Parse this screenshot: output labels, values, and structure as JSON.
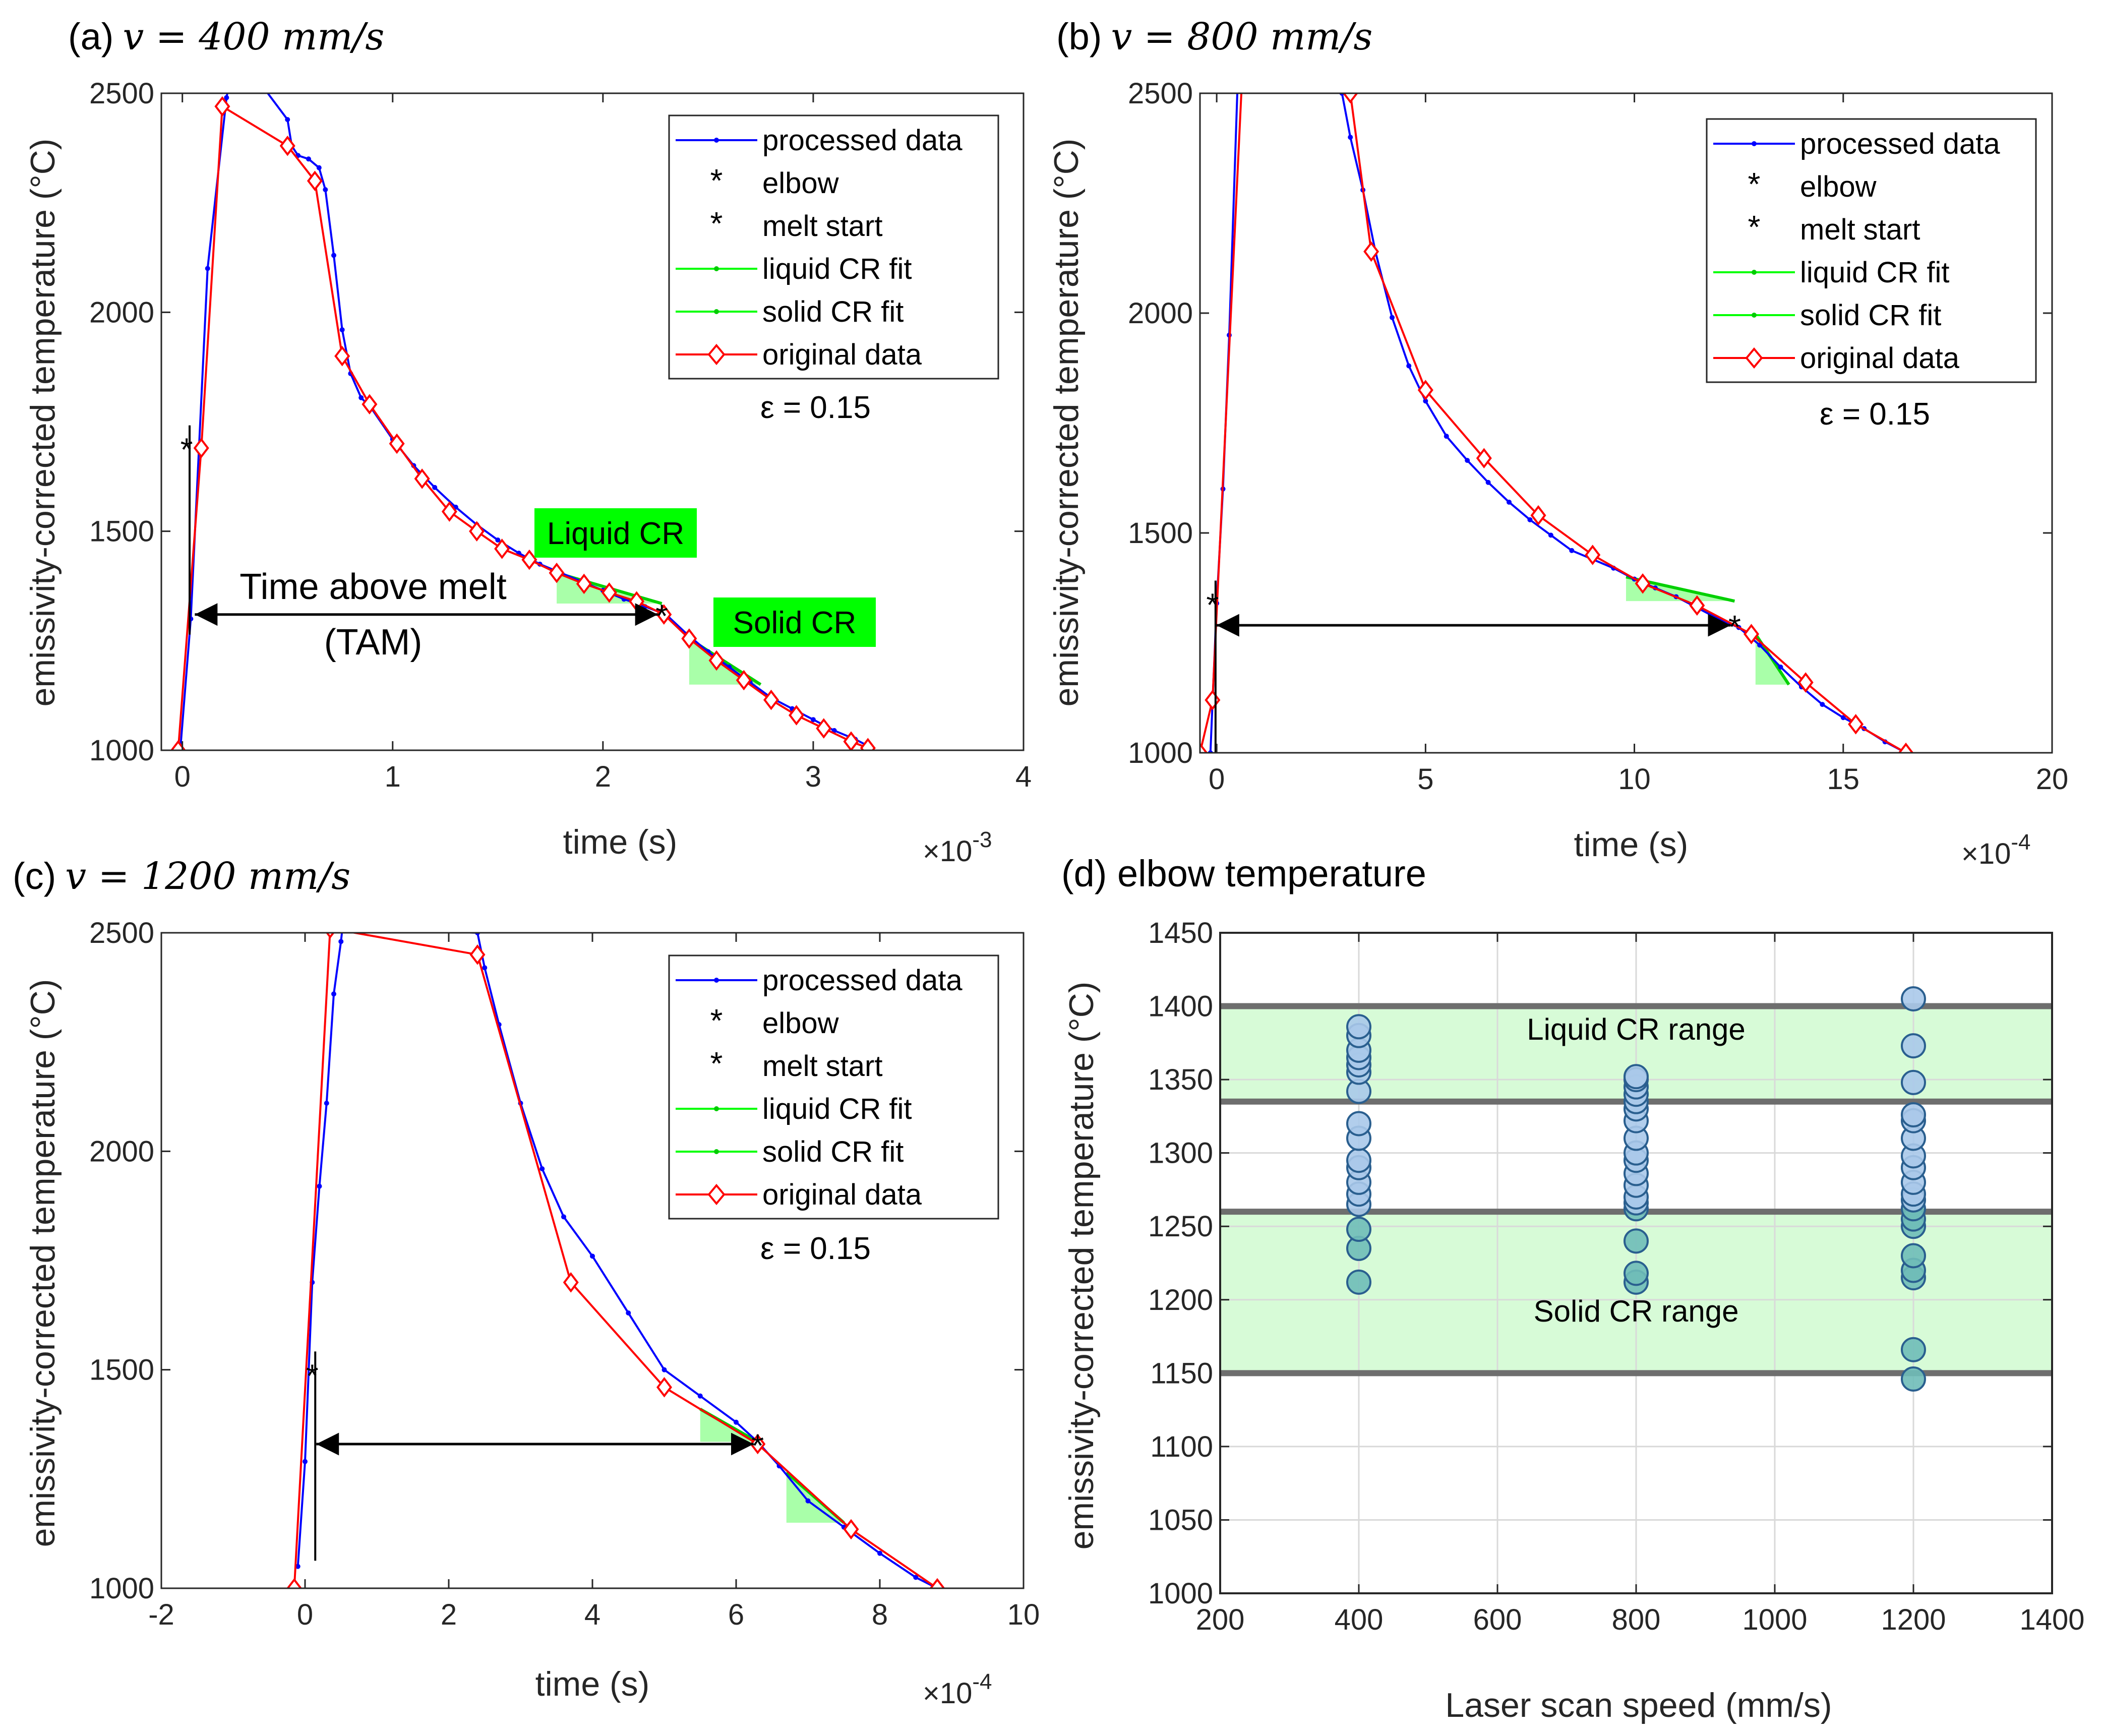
{
  "chart_data": [
    {
      "panel": "a",
      "type": "line",
      "title": {
        "label": "(a)",
        "math": "v = 400 mm/s"
      },
      "xlabel": "time (s)",
      "ylabel": "emissivity-corrected temperature (°C)",
      "x_exponent_label": "×10",
      "x_exponent": "-3",
      "xlim": [
        -0.0001,
        0.004
      ],
      "ylim": [
        1000,
        2500
      ],
      "xticks": [
        0,
        0.001,
        0.002,
        0.003,
        0.004
      ],
      "xtick_labels": [
        "0",
        "1",
        "2",
        "3",
        "4"
      ],
      "yticks": [
        1000,
        1500,
        2000,
        2500
      ],
      "ytick_labels": [
        "1000",
        "1500",
        "2000",
        "2500"
      ],
      "legend": [
        "processed data",
        "elbow",
        "melt start",
        "liquid CR fit",
        "solid CR fit",
        "original data"
      ],
      "legend_position": "top-right",
      "emissivity_label": "ε = 0.15",
      "series": [
        {
          "name": "processed data",
          "color": "#0000ff",
          "x": [
            -1e-05,
            4e-05,
            0.00012,
            0.00021,
            0.00025,
            0.0005,
            0.00052,
            0.00055,
            0.0006,
            0.00065,
            0.00068,
            0.00072,
            0.00076,
            0.0008,
            0.00085,
            0.0009,
            0.001,
            0.0011,
            0.0012,
            0.0013,
            0.0014,
            0.0015,
            0.0016,
            0.0017,
            0.0018,
            0.0019,
            0.002,
            0.0021,
            0.0022,
            0.0023,
            0.0024,
            0.0025,
            0.0026,
            0.0027,
            0.0028,
            0.0029,
            0.003,
            0.0031,
            0.0032,
            0.00326
          ],
          "y": [
            1000,
            1300,
            2100,
            2490,
            2600,
            2440,
            2380,
            2358,
            2350,
            2330,
            2280,
            2130,
            1960,
            1860,
            1805,
            1780,
            1710,
            1650,
            1600,
            1555,
            1515,
            1480,
            1450,
            1425,
            1405,
            1385,
            1365,
            1345,
            1328,
            1310,
            1265,
            1225,
            1190,
            1155,
            1120,
            1095,
            1070,
            1045,
            1025,
            1010
          ]
        },
        {
          "name": "original data",
          "color": "#ff0000",
          "x": [
            -2e-05,
            9e-05,
            0.00019,
            0.0005,
            0.00063,
            0.00076,
            0.00089,
            0.00102,
            0.00114,
            0.00127,
            0.0014,
            0.00152,
            0.00165,
            0.00178,
            0.00191,
            0.00203,
            0.00216,
            0.00229,
            0.00241,
            0.00254,
            0.00267,
            0.0028,
            0.00292,
            0.00305,
            0.00318,
            0.00326
          ],
          "y": [
            1000,
            1690,
            2470,
            2380,
            2300,
            1900,
            1790,
            1700,
            1620,
            1545,
            1500,
            1460,
            1435,
            1405,
            1380,
            1360,
            1340,
            1310,
            1255,
            1205,
            1160,
            1115,
            1080,
            1050,
            1020,
            1005
          ]
        }
      ],
      "elbow": {
        "x": 0.00228,
        "y": 1310
      },
      "melt_start": {
        "x": 2e-05,
        "y": 1690
      },
      "tam_arrow": {
        "x1": 4e-05,
        "x2": 0.00228,
        "y": 1310
      },
      "liquid_fit": {
        "x": [
          0.00178,
          0.00228
        ],
        "y": [
          1405,
          1335
        ]
      },
      "solid_fit": {
        "x": [
          0.00241,
          0.00275
        ],
        "y": [
          1255,
          1150
        ]
      },
      "annotations": {
        "tam_line1": "Time above melt",
        "tam_line2": "(TAM)",
        "liquid_cr": "Liquid CR",
        "solid_cr": "Solid CR"
      }
    },
    {
      "panel": "b",
      "type": "line",
      "title": {
        "label": "(b)",
        "math": "v = 800 mm/s"
      },
      "xlabel": "time (s)",
      "ylabel": "emissivity-corrected temperature (°C)",
      "x_exponent_label": "×10",
      "x_exponent": "-4",
      "xlim": [
        -4e-05,
        0.002
      ],
      "ylim": [
        1000,
        2500
      ],
      "xticks": [
        0,
        0.0005,
        0.001,
        0.0015,
        0.002
      ],
      "xtick_labels": [
        "0",
        "5",
        "10",
        "15",
        "20"
      ],
      "yticks": [
        1000,
        1500,
        2000,
        2500
      ],
      "ytick_labels": [
        "1000",
        "1500",
        "2000",
        "2500"
      ],
      "legend": [
        "processed data",
        "elbow",
        "melt start",
        "liquid CR fit",
        "solid CR fit",
        "original data"
      ],
      "legend_position": "top-right",
      "emissivity_label": "ε = 0.15",
      "series": [
        {
          "name": "processed data",
          "color": "#0000ff",
          "x": [
            -1.5e-05,
            0.0,
            1.5e-05,
            3e-05,
            5e-05,
            0.0003,
            0.00032,
            0.00035,
            0.00038,
            0.00042,
            0.00046,
            0.0005,
            0.00055,
            0.0006,
            0.00065,
            0.0007,
            0.00075,
            0.0008,
            0.00085,
            0.0009,
            0.00095,
            0.001,
            0.00105,
            0.0011,
            0.00115,
            0.0012,
            0.00125,
            0.0013,
            0.00135,
            0.0014,
            0.00145,
            0.0015,
            0.00155,
            0.0016,
            0.00165
          ],
          "y": [
            1000,
            1340,
            1600,
            1950,
            2520,
            2500,
            2400,
            2280,
            2140,
            1990,
            1880,
            1800,
            1720,
            1665,
            1615,
            1570,
            1530,
            1495,
            1460,
            1440,
            1420,
            1395,
            1375,
            1355,
            1330,
            1305,
            1285,
            1245,
            1195,
            1150,
            1110,
            1080,
            1055,
            1025,
            1000
          ]
        },
        {
          "name": "original data",
          "color": "#ff0000",
          "x": [
            -4e-05,
            -1e-05,
            6e-05,
            0.00032,
            0.00037,
            0.0005,
            0.00064,
            0.00077,
            0.0009,
            0.00102,
            0.00115,
            0.00128,
            0.00141,
            0.00153,
            0.00165
          ],
          "y": [
            1000,
            1120,
            2520,
            2500,
            2140,
            1825,
            1670,
            1540,
            1450,
            1385,
            1335,
            1270,
            1160,
            1065,
            1000
          ]
        }
      ],
      "elbow": {
        "x": 0.00124,
        "y": 1290
      },
      "melt_start": {
        "x": -1e-05,
        "y": 1340
      },
      "tam_arrow": {
        "x1": -1e-05,
        "x2": 0.00124,
        "y": 1290
      },
      "liquid_fit": {
        "x": [
          0.00098,
          0.00124
        ],
        "y": [
          1400,
          1345
        ]
      },
      "solid_fit": {
        "x": [
          0.00129,
          0.00137
        ],
        "y": [
          1270,
          1155
        ]
      }
    },
    {
      "panel": "c",
      "type": "line",
      "title": {
        "label": "(c)",
        "math": "v = 1200 mm/s"
      },
      "xlabel": "time (s)",
      "ylabel": "emissivity-corrected temperature (°C)",
      "x_exponent_label": "×10",
      "x_exponent": "-4",
      "xlim": [
        -0.0002,
        0.001
      ],
      "ylim": [
        1000,
        2500
      ],
      "xticks": [
        -0.0002,
        0,
        0.0002,
        0.0004,
        0.0006,
        0.0008,
        0.001
      ],
      "xtick_labels": [
        "-2",
        "0",
        "2",
        "4",
        "6",
        "8",
        "10"
      ],
      "yticks": [
        1000,
        1500,
        2000,
        2500
      ],
      "ytick_labels": [
        "1000",
        "1500",
        "2000",
        "2500"
      ],
      "legend": [
        "processed data",
        "elbow",
        "melt start",
        "liquid CR fit",
        "solid CR fit",
        "original data"
      ],
      "legend_position": "top-right",
      "emissivity_label": "ε = 0.15",
      "series": [
        {
          "name": "processed data",
          "color": "#0000ff",
          "x": [
            -1e-05,
            0.0,
            1e-05,
            2e-05,
            3e-05,
            4e-05,
            5e-05,
            5.2e-05,
            0.00024,
            0.00025,
            0.00027,
            0.0003,
            0.00033,
            0.00036,
            0.0004,
            0.00045,
            0.0005,
            0.00055,
            0.0006,
            0.00063,
            0.00066,
            0.0007,
            0.00075,
            0.0008,
            0.00085,
            0.00088
          ],
          "y": [
            1050,
            1290,
            1700,
            1920,
            2110,
            2360,
            2480,
            2510,
            2500,
            2420,
            2290,
            2110,
            1960,
            1850,
            1760,
            1630,
            1500,
            1440,
            1380,
            1335,
            1280,
            1200,
            1140,
            1080,
            1025,
            1000
          ]
        },
        {
          "name": "original data",
          "color": "#ff0000",
          "x": [
            -1.5e-05,
            3.5e-05,
            0.00024,
            0.00037,
            0.0005,
            0.00063,
            0.00076,
            0.00088
          ],
          "y": [
            1000,
            2510,
            2450,
            1700,
            1460,
            1330,
            1135,
            1000
          ]
        }
      ],
      "elbow": {
        "x": 0.00063,
        "y": 1330
      },
      "melt_start": {
        "x": 1e-05,
        "y": 1490
      },
      "tam_arrow": {
        "x1": 1e-05,
        "x2": 0.00063,
        "y": 1330
      },
      "liquid_fit": {
        "x": [
          0.00055,
          0.00063
        ],
        "y": [
          1410,
          1335
        ]
      },
      "solid_fit": {
        "x": [
          0.00067,
          0.00075
        ],
        "y": [
          1265,
          1150
        ]
      }
    },
    {
      "panel": "d",
      "type": "scatter",
      "title": {
        "label": "(d) elbow temperature"
      },
      "xlabel": "Laser scan speed (mm/s)",
      "ylabel": "emissivity-corrected temperature (°C)",
      "xlim": [
        200,
        1400
      ],
      "ylim": [
        1000,
        1450
      ],
      "xticks": [
        200,
        400,
        600,
        800,
        1000,
        1200,
        1400
      ],
      "yticks": [
        1000,
        1050,
        1100,
        1150,
        1200,
        1250,
        1300,
        1350,
        1400,
        1450
      ],
      "grid": true,
      "bands": [
        {
          "name": "Liquid CR range",
          "from": 1335,
          "to": 1400
        },
        {
          "name": "Solid CR range",
          "from": 1150,
          "to": 1260
        }
      ],
      "series": [
        {
          "x": 400,
          "y": [
            1212,
            1235,
            1248,
            1265,
            1272,
            1280,
            1290,
            1295,
            1310,
            1320,
            1342,
            1355,
            1360,
            1365,
            1370,
            1380,
            1386
          ]
        },
        {
          "x": 800,
          "y": [
            1212,
            1218,
            1240,
            1262,
            1266,
            1270,
            1278,
            1286,
            1295,
            1300,
            1310,
            1322,
            1330,
            1335,
            1340,
            1345,
            1350,
            1352
          ]
        },
        {
          "x": 1200,
          "y": [
            1146,
            1166,
            1215,
            1220,
            1230,
            1250,
            1255,
            1262,
            1268,
            1272,
            1280,
            1290,
            1298,
            1310,
            1322,
            1326,
            1348,
            1373,
            1405
          ]
        }
      ]
    }
  ]
}
